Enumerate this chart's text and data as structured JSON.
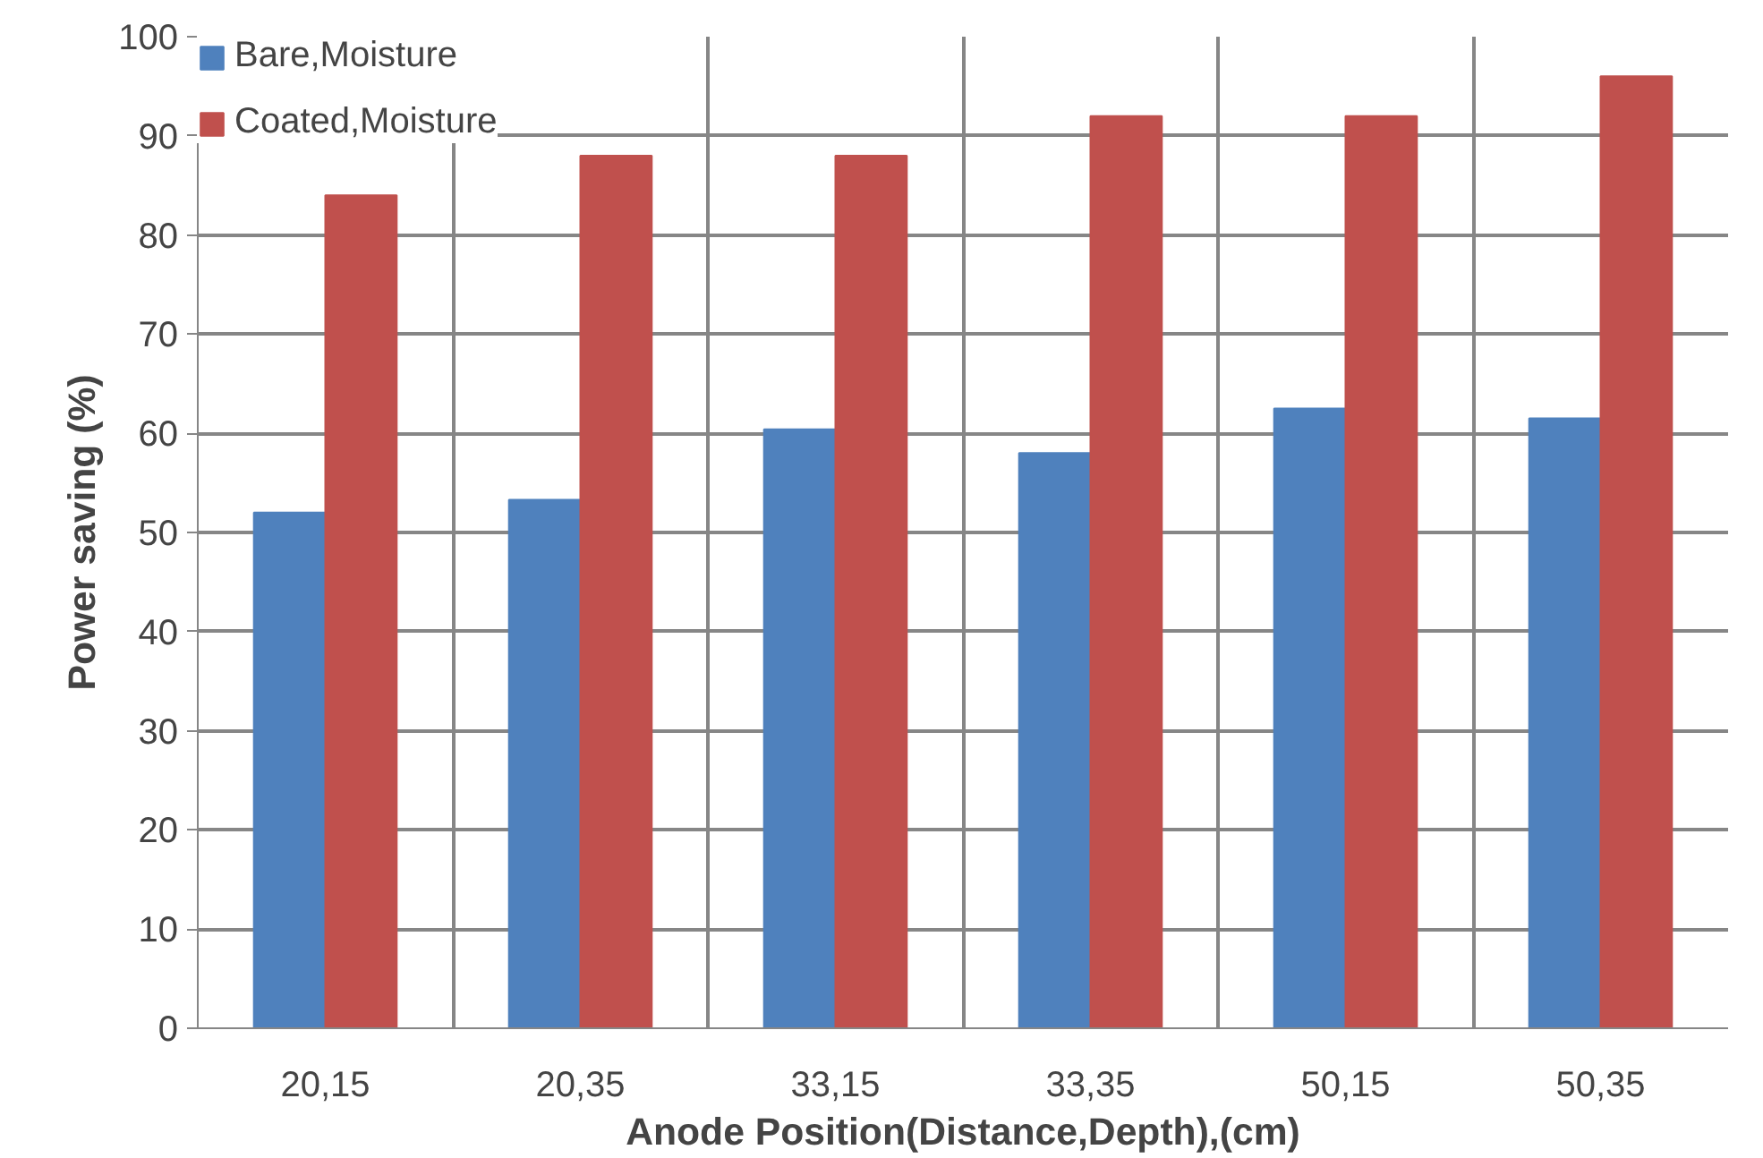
{
  "chart_data": {
    "type": "bar",
    "xlabel": "Anode Position(Distance,Depth),(cm)",
    "ylabel": "Power saving (%)",
    "categories": [
      "20,15",
      "20,35",
      "33,15",
      "33,35",
      "50,15",
      "50,35"
    ],
    "series": [
      {
        "name": "Bare,Moisture",
        "color": "#4f81bd",
        "values": [
          52,
          53.3,
          60.4,
          58,
          62.5,
          61.5
        ]
      },
      {
        "name": "Coated,Moisture",
        "color": "#c0504d",
        "values": [
          84,
          88,
          88,
          92,
          92,
          96
        ]
      }
    ],
    "ylim": [
      0,
      100
    ],
    "yticks": [
      0,
      10,
      20,
      30,
      40,
      50,
      60,
      70,
      80,
      90,
      100
    ],
    "grid": true,
    "legend": "top left"
  }
}
